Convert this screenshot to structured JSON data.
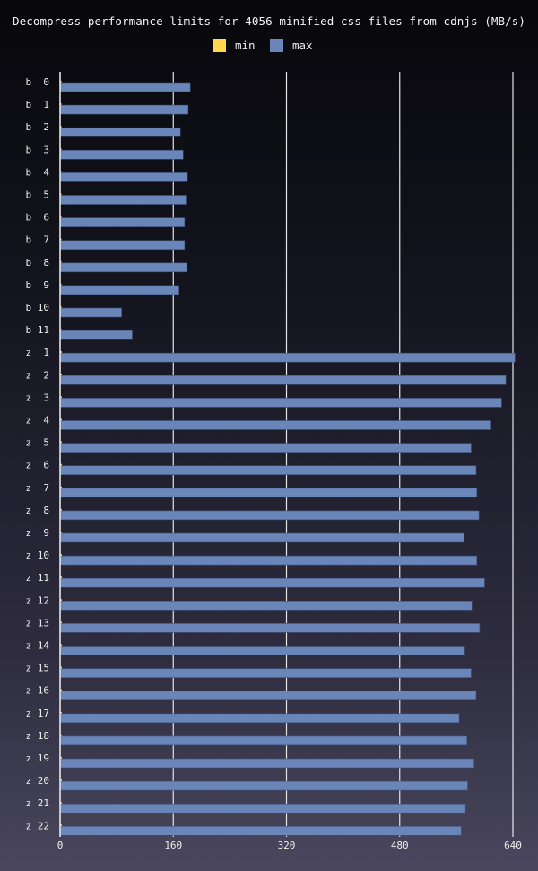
{
  "chart_data": {
    "type": "bar",
    "orientation": "horizontal",
    "title": "Decompress performance limits for 4056 minified css files from cdnjs (MB/s)",
    "xlabel": "",
    "ylabel": "",
    "xlim": [
      0,
      640
    ],
    "xticks": [
      0,
      160,
      320,
      480,
      640
    ],
    "grid": "vertical",
    "legend_position": "top-center",
    "categories": [
      "b  0",
      "b  1",
      "b  2",
      "b  3",
      "b  4",
      "b  5",
      "b  6",
      "b  7",
      "b  8",
      "b  9",
      "b 10",
      "b 11",
      "z  1",
      "z  2",
      "z  3",
      "z  4",
      "z  5",
      "z  6",
      "z  7",
      "z  8",
      "z  9",
      "z 10",
      "z 11",
      "z 12",
      "z 13",
      "z 14",
      "z 15",
      "z 16",
      "z 17",
      "z 18",
      "z 19",
      "z 20",
      "z 21",
      "z 22"
    ],
    "series": [
      {
        "name": "min",
        "color": "#ffd84d",
        "values": [
          0.8,
          0.8,
          0.8,
          0.8,
          0.8,
          0.8,
          0.8,
          0.8,
          0.8,
          0.8,
          0.8,
          0.8,
          2.5,
          2.5,
          2.5,
          2.5,
          2.5,
          2.5,
          2.5,
          2.5,
          2.5,
          2.5,
          2.5,
          2.5,
          2.5,
          2.5,
          2.5,
          2.5,
          2.5,
          2.5,
          2.5,
          2.5,
          2.5,
          2.5
        ]
      },
      {
        "name": "max",
        "color": "#6a86b8",
        "values": [
          184,
          181,
          170,
          174,
          180,
          178,
          176,
          176,
          179,
          168,
          87,
          102,
          643,
          630,
          624,
          609,
          581,
          588,
          589,
          592,
          571,
          589,
          600,
          582,
          593,
          572,
          581,
          588,
          564,
          575,
          585,
          576,
          573,
          567
        ]
      }
    ]
  }
}
